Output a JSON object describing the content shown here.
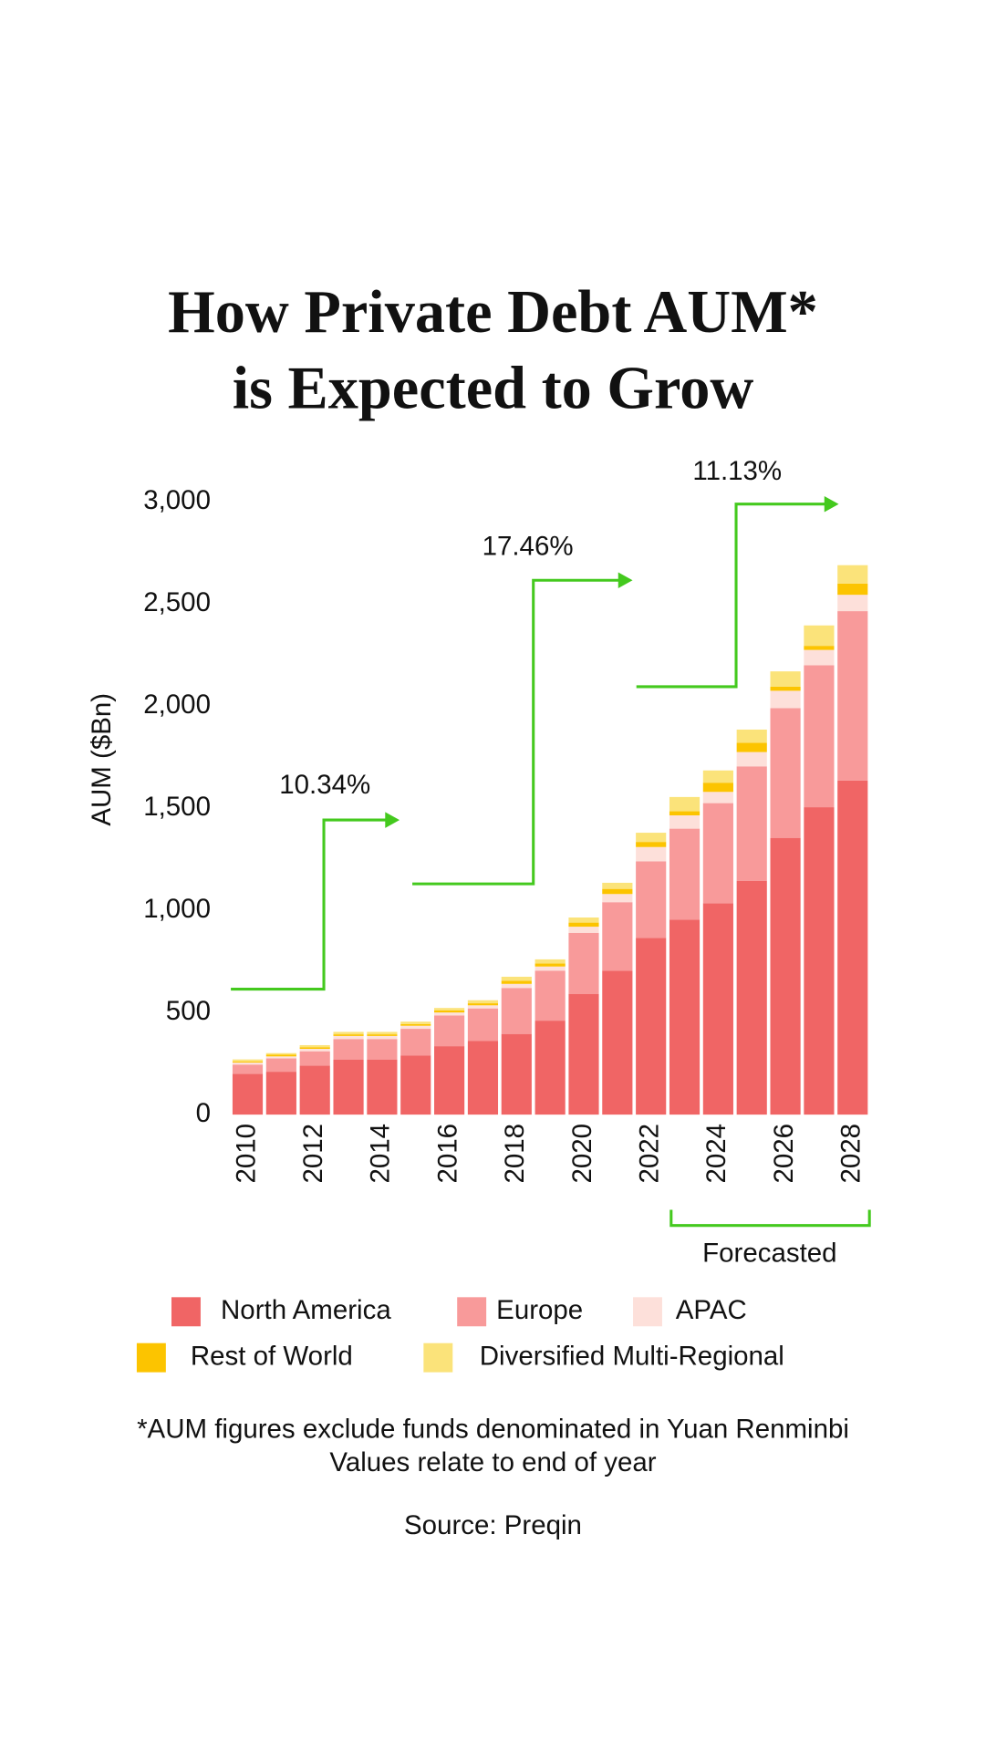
{
  "chart_data": {
    "type": "stacked-bar",
    "title": [
      "How Private Debt AUM*",
      "is Expected to Grow"
    ],
    "y_label": "AUM ($Bn)",
    "categories": [
      "2010",
      null,
      "2012",
      null,
      "2014",
      null,
      "2016",
      null,
      "2018",
      null,
      "2020",
      null,
      "2022",
      null,
      "2024",
      null,
      "2026",
      null,
      "2028"
    ],
    "series": [
      {
        "name": "North America",
        "color": "#f06565",
        "values": [
          200,
          210,
          240,
          270,
          270,
          290,
          335,
          360,
          395,
          460,
          590,
          705,
          865,
          955,
          1035,
          1145,
          1355,
          1505,
          1635
        ]
      },
      {
        "name": "Europe",
        "color": "#f89a9a",
        "values": [
          45,
          65,
          70,
          100,
          100,
          130,
          150,
          160,
          225,
          245,
          300,
          335,
          375,
          445,
          490,
          560,
          635,
          695,
          830
        ]
      },
      {
        "name": "APAC",
        "color": "#fde0da",
        "values": [
          10,
          10,
          12,
          15,
          15,
          15,
          15,
          15,
          20,
          20,
          30,
          40,
          70,
          65,
          55,
          70,
          85,
          75,
          80
        ]
      },
      {
        "name": "Rest of World",
        "color": "#fcc400",
        "values": [
          5,
          8,
          8,
          8,
          8,
          8,
          10,
          10,
          15,
          15,
          20,
          25,
          25,
          20,
          45,
          45,
          20,
          20,
          55
        ]
      },
      {
        "name": "Diversified Multi-Regional",
        "color": "#fbe37a",
        "values": [
          10,
          8,
          10,
          12,
          12,
          12,
          12,
          15,
          20,
          20,
          25,
          30,
          45,
          70,
          60,
          65,
          75,
          100,
          90
        ]
      }
    ],
    "ylim": [
      0,
      3000
    ],
    "yticks": [
      0,
      500,
      {
        "value": 1000,
        "label": "1,000"
      },
      {
        "value": 1500,
        "label": "1,500"
      },
      {
        "value": 2000,
        "label": "2,000"
      },
      {
        "value": 2500,
        "label": "2,500"
      },
      {
        "value": 3000,
        "label": "3,000"
      }
    ],
    "grid": false,
    "annotations": {
      "growth": [
        "10.34%",
        "17.46%",
        "11.13%"
      ],
      "forecast": "Forecasted"
    },
    "footnotes": [
      "*AUM figures exclude funds denominated in Yuan Renminbi",
      "Values relate to end of year"
    ],
    "source": "Source: Preqin"
  }
}
